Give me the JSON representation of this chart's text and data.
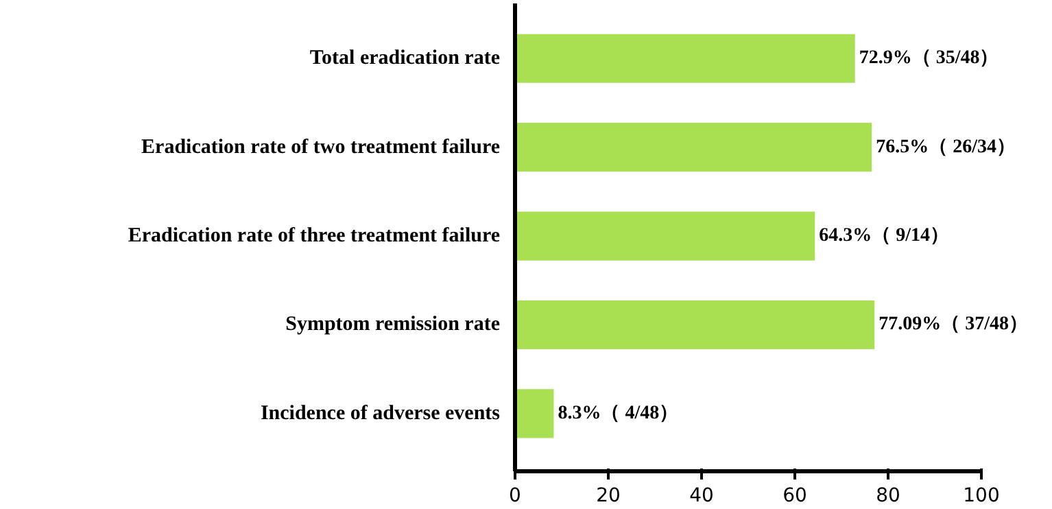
{
  "chart_data": {
    "type": "bar",
    "orientation": "horizontal",
    "categories": [
      "Total eradication rate",
      "Eradication rate of two treatment failure",
      "Eradication rate of three treatment failure",
      "Symptom remission rate",
      "Incidence of adverse events"
    ],
    "values": [
      72.9,
      76.5,
      64.3,
      77.09,
      8.3
    ],
    "value_labels": [
      "72.9%（ 35/48）",
      "76.5%（ 26/34）",
      "64.3%（ 9/14）",
      "77.09%（ 37/48）",
      "8.3%（ 4/48）"
    ],
    "color": "#a8e052",
    "xlim": [
      0,
      100
    ],
    "xticks": [
      0,
      20,
      40,
      60,
      80,
      100
    ]
  }
}
